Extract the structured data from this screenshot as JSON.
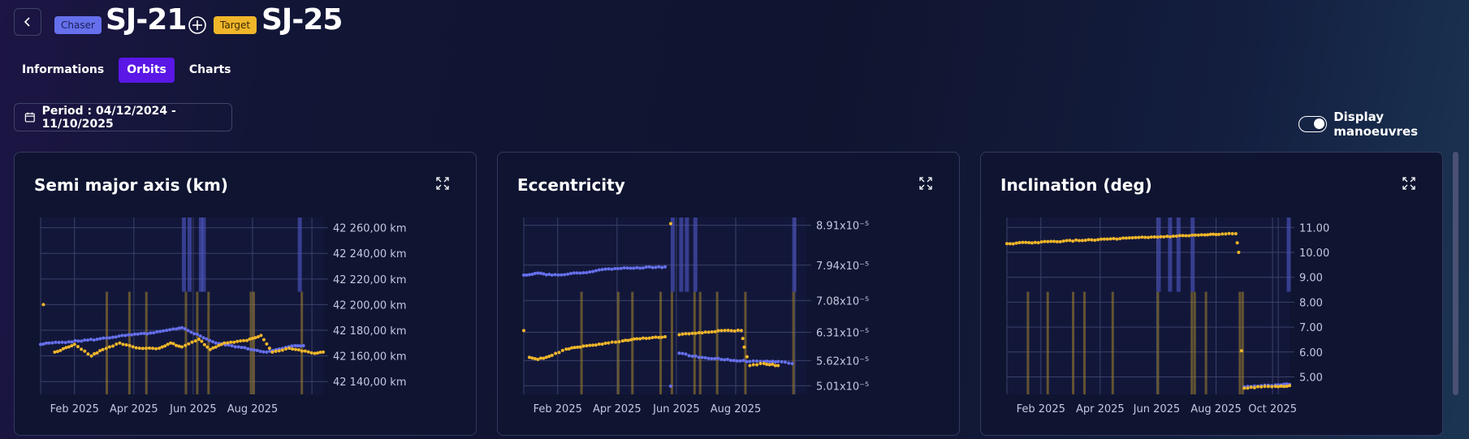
{
  "header": {
    "chaser_badge": "Chaser",
    "chaser_name": "SJ-21",
    "target_badge": "Target",
    "target_name": "SJ-25",
    "icons": {
      "back": "chevron-left-icon",
      "relation": "crosshair-icon"
    }
  },
  "tabs": [
    {
      "label": "Informations",
      "active": false
    },
    {
      "label": "Orbits",
      "active": true
    },
    {
      "label": "Charts",
      "active": false
    }
  ],
  "period": {
    "label": "Period : 04/12/2024 - 11/10/2025",
    "icon": "calendar-icon"
  },
  "toggle": {
    "label": "Display manoeuvres",
    "on": true
  },
  "colors": {
    "chaser": "#6670ec",
    "target": "#f0b62a",
    "manoeuvre_target": "#a5852a",
    "manoeuvre_chaser": "#5058c8"
  },
  "charts": [
    {
      "title": "Semi major axis (km)",
      "ylabels": [
        "42 260,00 km",
        "42 240,00 km",
        "42 220,00 km",
        "42 200,00 km",
        "42 180,00 km",
        "42 160,00 km",
        "42 140,00 km"
      ],
      "yvalues": [
        42260,
        42240,
        42220,
        42200,
        42180,
        42160,
        42140
      ],
      "xlabels": [
        "Feb 2025",
        "Apr 2025",
        "Jun 2025",
        "Aug 2025"
      ],
      "chart_data": {
        "type": "scatter",
        "ylim": [
          42130,
          42268
        ],
        "x_range": [
          "2024-12-04",
          "2025-10-11"
        ],
        "series": [
          {
            "name": "Chaser SJ-21",
            "points": [
              [
                0,
                42169
              ],
              [
                0.03,
                42170
              ],
              [
                0.1,
                42171
              ],
              [
                0.2,
                42173
              ],
              [
                0.3,
                42176
              ],
              [
                0.4,
                42178
              ],
              [
                0.48,
                42181
              ],
              [
                0.5,
                42182
              ],
              [
                0.62,
                42170
              ],
              [
                0.7,
                42167
              ],
              [
                0.8,
                42163
              ],
              [
                0.9,
                42168
              ],
              [
                0.93,
                42168
              ]
            ]
          },
          {
            "name": "Target SJ-25",
            "points": [
              [
                0.01,
                42200
              ],
              [
                0.05,
                42163
              ],
              [
                0.1,
                42167
              ],
              [
                0.12,
                42169
              ],
              [
                0.18,
                42160
              ],
              [
                0.22,
                42165
              ],
              [
                0.28,
                42170
              ],
              [
                0.35,
                42166
              ],
              [
                0.42,
                42166
              ],
              [
                0.46,
                42170
              ],
              [
                0.5,
                42167
              ],
              [
                0.56,
                42173
              ],
              [
                0.6,
                42165
              ],
              [
                0.65,
                42170
              ],
              [
                0.73,
                42172
              ],
              [
                0.78,
                42176
              ],
              [
                0.82,
                42163
              ],
              [
                0.88,
                42166
              ],
              [
                0.97,
                42162
              ],
              [
                1.0,
                42163
              ]
            ]
          }
        ],
        "manoeuvres_target": [
          0.23,
          0.31,
          0.37,
          0.51,
          0.55,
          0.59,
          0.74,
          0.75,
          0.92
        ],
        "manoeuvres_chaser": [
          0.5,
          0.52,
          0.56,
          0.57,
          0.91
        ]
      }
    },
    {
      "title": "Eccentricity",
      "ylabels": [
        "8.91x10⁻⁵",
        "7.94x10⁻⁵",
        "7.08x10⁻⁵",
        "6.31x10⁻⁵",
        "5.62x10⁻⁵",
        "5.01x10⁻⁵"
      ],
      "yvalues": [
        8.91,
        7.94,
        7.08,
        6.31,
        5.62,
        5.01
      ],
      "xlabels": [
        "Feb 2025",
        "Apr 2025",
        "Jun 2025",
        "Aug 2025"
      ],
      "chart_data": {
        "type": "scatter",
        "ylim": [
          4.8,
          9.1
        ],
        "x_range": [
          "2024-12-04",
          "2025-10-11"
        ],
        "series": [
          {
            "name": "Chaser SJ-21",
            "points": [
              [
                0,
                7.7
              ],
              [
                0.05,
                7.75
              ],
              [
                0.1,
                7.7
              ],
              [
                0.2,
                7.75
              ],
              [
                0.3,
                7.85
              ],
              [
                0.4,
                7.88
              ],
              [
                0.5,
                7.9
              ],
              [
                0.52,
                5.0
              ],
              [
                0.55,
                5.8
              ],
              [
                0.62,
                5.7
              ],
              [
                0.8,
                5.6
              ],
              [
                0.85,
                5.6
              ],
              [
                0.9,
                5.6
              ],
              [
                0.95,
                5.55
              ]
            ]
          },
          {
            "name": "Target SJ-25",
            "points": [
              [
                0,
                6.35
              ],
              [
                0.02,
                5.7
              ],
              [
                0.05,
                5.65
              ],
              [
                0.1,
                5.75
              ],
              [
                0.15,
                5.9
              ],
              [
                0.2,
                5.95
              ],
              [
                0.3,
                6.05
              ],
              [
                0.35,
                6.1
              ],
              [
                0.4,
                6.15
              ],
              [
                0.5,
                6.2
              ],
              [
                0.52,
                8.95
              ],
              [
                0.55,
                6.25
              ],
              [
                0.62,
                6.3
              ],
              [
                0.7,
                6.35
              ],
              [
                0.77,
                6.35
              ],
              [
                0.78,
                5.95
              ],
              [
                0.8,
                5.5
              ],
              [
                0.85,
                5.55
              ],
              [
                0.9,
                5.5
              ]
            ]
          }
        ],
        "manoeuvres_target": [
          0.2,
          0.33,
          0.38,
          0.48,
          0.52,
          0.6,
          0.62,
          0.68,
          0.78,
          0.95
        ],
        "manoeuvres_chaser": [
          0.52,
          0.55,
          0.57,
          0.6,
          0.95
        ]
      }
    },
    {
      "title": "Inclination (deg)",
      "ylabels": [
        "11.00",
        "10.00",
        "9.00",
        "8.00",
        "7.00",
        "6.00",
        "5.00"
      ],
      "yvalues": [
        11,
        10,
        9,
        8,
        7,
        6,
        5
      ],
      "xlabels": [
        "Feb 2025",
        "Apr 2025",
        "Jun 2025",
        "Aug 2025",
        "Oct 2025"
      ],
      "chart_data": {
        "type": "scatter",
        "ylim": [
          4.3,
          11.4
        ],
        "x_range": [
          "2024-12-04",
          "2025-10-11"
        ],
        "series": [
          {
            "name": "Chaser SJ-21",
            "points": [
              [
                0.84,
                4.6
              ],
              [
                0.9,
                4.65
              ],
              [
                0.95,
                4.68
              ],
              [
                1.0,
                4.7
              ]
            ]
          },
          {
            "name": "Target SJ-25",
            "points": [
              [
                0,
                10.35
              ],
              [
                0.1,
                10.4
              ],
              [
                0.2,
                10.45
              ],
              [
                0.3,
                10.5
              ],
              [
                0.4,
                10.55
              ],
              [
                0.5,
                10.6
              ],
              [
                0.6,
                10.65
              ],
              [
                0.7,
                10.7
              ],
              [
                0.75,
                10.72
              ],
              [
                0.81,
                10.75
              ],
              [
                0.82,
                10.0
              ],
              [
                0.83,
                6.05
              ],
              [
                0.84,
                4.55
              ],
              [
                0.9,
                4.6
              ],
              [
                0.95,
                4.62
              ],
              [
                1.0,
                4.65
              ]
            ]
          }
        ],
        "manoeuvres_target": [
          0.07,
          0.14,
          0.23,
          0.27,
          0.37,
          0.53,
          0.65,
          0.66,
          0.7,
          0.82,
          0.83
        ],
        "manoeuvres_chaser": [
          0.53,
          0.57,
          0.6,
          0.65,
          0.99
        ]
      }
    }
  ]
}
